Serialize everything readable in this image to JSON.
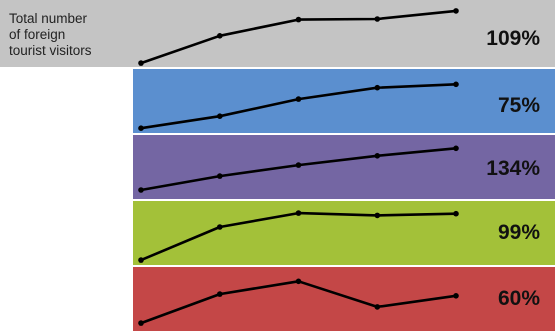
{
  "chart_data": {
    "type": "line",
    "x": [
      1,
      2,
      3,
      4,
      5
    ],
    "panels": [
      {
        "label": "Total number\nof foreign\ntourist visitors",
        "value_label": "109%",
        "color": "#c4c4c4",
        "values": [
          0.05,
          0.52,
          0.8,
          0.81,
          0.95
        ]
      },
      {
        "label": "",
        "value_label": "75%",
        "color": "#5b8fcf",
        "values": [
          0.05,
          0.26,
          0.56,
          0.76,
          0.82
        ]
      },
      {
        "label": "",
        "value_label": "134%",
        "color": "#7466a3",
        "values": [
          0.12,
          0.36,
          0.55,
          0.71,
          0.84
        ]
      },
      {
        "label": "",
        "value_label": "99%",
        "color": "#a3c139",
        "values": [
          0.05,
          0.62,
          0.86,
          0.82,
          0.85
        ]
      },
      {
        "label": "",
        "value_label": "60%",
        "color": "#c44747",
        "values": [
          0.05,
          0.55,
          0.77,
          0.33,
          0.52
        ]
      }
    ]
  }
}
